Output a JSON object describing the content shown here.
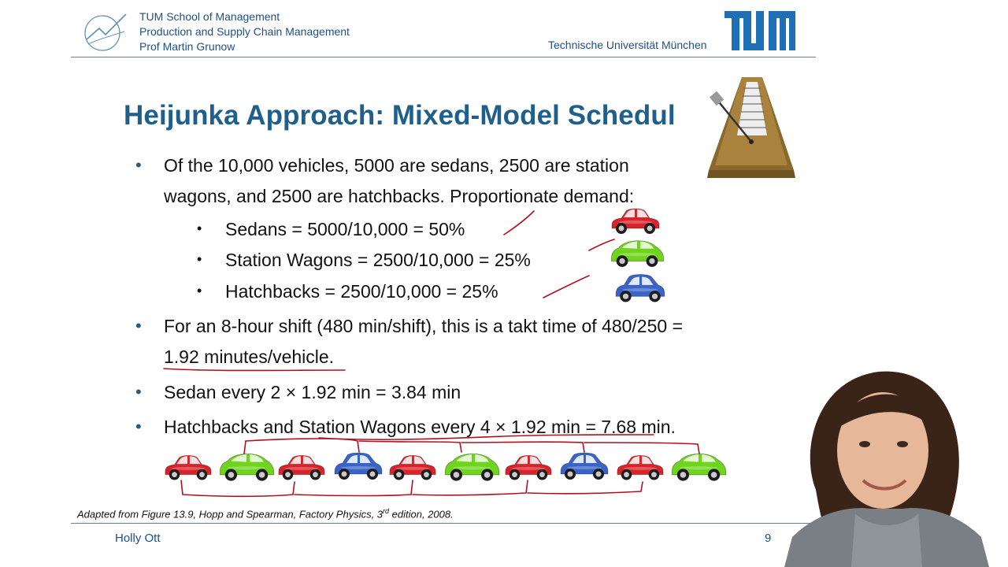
{
  "header": {
    "line1": "TUM School of Management",
    "line2": "Production and Supply Chain Management",
    "line3": "Prof Martin Grunow",
    "university": "Technische Universität München",
    "logo_icon": "tum-logo-icon",
    "school_icon": "management-chart-icon",
    "brand_color": "#1f4e8c"
  },
  "title": "Heijunka Approach: Mixed-Model Schedul",
  "title_color": "#1f5f8b",
  "bullets": [
    {
      "text": "Of the 10,000 vehicles, 5000 are sedans, 2500 are station"
    },
    {
      "text": "wagons, and 2500 are hatchbacks. Proportionate demand:"
    },
    {
      "text": "For an 8-hour shift (480 min/shift), this is a takt time of 480/250 ="
    },
    {
      "text": "1.92 minutes/vehicle."
    },
    {
      "text": "Sedan every 2 × 1.92 min = 3.84 min"
    },
    {
      "text": "Hatchbacks and Station Wagons every 4 × 1.92 min = 7.68 min."
    }
  ],
  "sub_bullets": [
    {
      "text": "Sedans = 5000/10,000 = 50%",
      "car_color": "#d8232a"
    },
    {
      "text": "Station Wagons =  2500/10,000 = 25%",
      "car_color": "#6fd41e"
    },
    {
      "text": "Hatchbacks = 2500/10,000 = 25%",
      "car_color": "#3a63c8"
    }
  ],
  "sequence": [
    "sedan",
    "wagon",
    "sedan",
    "hatchback",
    "sedan",
    "wagon",
    "sedan",
    "hatchback",
    "sedan",
    "wagon"
  ],
  "car_colors": {
    "sedan": "#d8232a",
    "wagon": "#6fd41e",
    "hatchback": "#3a63c8"
  },
  "caption": {
    "text": "Adapted from Figure 13.9, Hopp and Spearman, Factory Physics, 3",
    "sup": "rd",
    "tail": " edition, 2008."
  },
  "footer": {
    "presenter": "Holly Ott",
    "page": "9"
  },
  "ink_color": "#b01020"
}
